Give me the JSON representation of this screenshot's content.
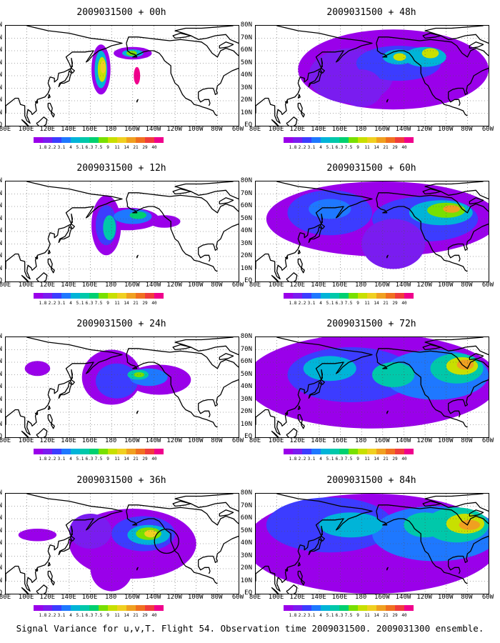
{
  "footer": "Signal Variance for u,v,T. Flight 54. Observation time 2009031500. 2009031300 ensemble.",
  "panels": [
    {
      "title": "2009031500 + 00h",
      "level": 0
    },
    {
      "title": "2009031500 + 12h",
      "level": 1
    },
    {
      "title": "2009031500 + 24h",
      "level": 2
    },
    {
      "title": "2009031500 + 36h",
      "level": 3
    },
    {
      "title": "2009031500 + 48h",
      "level": 4
    },
    {
      "title": "2009031500 + 60h",
      "level": 5
    },
    {
      "title": "2009031500 + 72h",
      "level": 6
    },
    {
      "title": "2009031500 + 84h",
      "level": 7
    }
  ],
  "lat_labels": [
    "80N",
    "70N",
    "60N",
    "50N",
    "40N",
    "30N",
    "20N",
    "10N",
    "EQ"
  ],
  "lon_labels": [
    "80E",
    "100E",
    "120E",
    "140E",
    "160E",
    "180",
    "160W",
    "140W",
    "120W",
    "100W",
    "80W",
    "60W"
  ],
  "colorbar": {
    "ticks": [
      "1.8",
      "2.2",
      "3.1",
      "4",
      "5.1",
      "6.3",
      "7.5",
      "9",
      "11",
      "14",
      "21",
      "29",
      "40"
    ],
    "colors": [
      "#9a00ea",
      "#7a1cf0",
      "#3c3cff",
      "#1e78ff",
      "#00b4d8",
      "#00c8aa",
      "#00d070",
      "#78e000",
      "#c8e000",
      "#f0d020",
      "#f0a020",
      "#f07020",
      "#f03c3c",
      "#f0008c"
    ]
  },
  "annotations": {
    "circle_panel": "2009031500 + 36h"
  }
}
